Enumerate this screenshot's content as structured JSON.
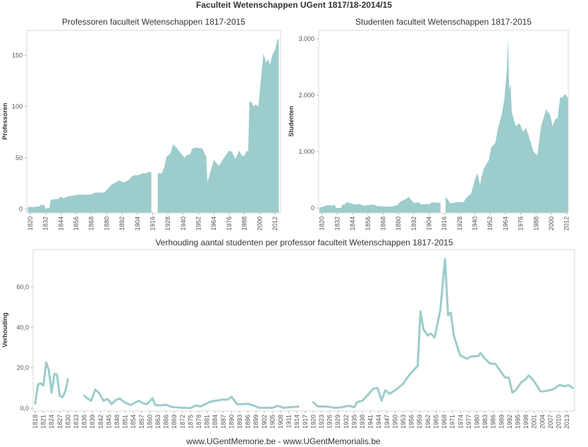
{
  "title": "Faculteit Wetenschappen UGent 1817/18-2014/15",
  "footer": "www.UGentMemorie.be - www.UGentMemorialis.be",
  "colors": {
    "series": "#9ccccc",
    "frame": "#d9d9d9"
  },
  "chart_data": [
    {
      "type": "area",
      "title": "Professoren faculteit Wetenschappen 1817-2015",
      "ylabel": "Professoren",
      "ylim": [
        0,
        170
      ],
      "yticks": [
        {
          "v": 0,
          "label": "0"
        },
        {
          "v": 50,
          "label": "50"
        },
        {
          "v": 100,
          "label": "100"
        },
        {
          "v": 150,
          "label": "150"
        }
      ],
      "xticks": [
        "1820",
        "1832",
        "1844",
        "1856",
        "1868",
        "1880",
        "1892",
        "1904",
        "1916",
        "1928",
        "1940",
        "1952",
        "1964",
        "1976",
        "1988",
        "2000",
        "2012"
      ],
      "points": [
        [
          1818,
          2
        ],
        [
          1822,
          2
        ],
        [
          1827,
          2.5
        ],
        [
          1828,
          4
        ],
        [
          1831,
          4
        ],
        [
          1832,
          0
        ],
        [
          1833,
          1
        ],
        [
          1835,
          1
        ],
        [
          1836,
          9
        ],
        [
          1842,
          10
        ],
        [
          1844,
          12
        ],
        [
          1846,
          10.5
        ],
        [
          1849,
          12
        ],
        [
          1857,
          14
        ],
        [
          1863,
          14
        ],
        [
          1867,
          14
        ],
        [
          1871,
          16
        ],
        [
          1878,
          16
        ],
        [
          1881,
          20
        ],
        [
          1884,
          24
        ],
        [
          1890,
          28
        ],
        [
          1893,
          26
        ],
        [
          1897,
          28
        ],
        [
          1900,
          32
        ],
        [
          1902,
          33
        ],
        [
          1905,
          33
        ],
        [
          1908,
          35
        ],
        [
          1911,
          34.5
        ],
        [
          1912,
          36
        ],
        [
          1915,
          36
        ],
        [
          1916,
          null
        ],
        [
          1920,
          35
        ],
        [
          1923,
          34.5
        ],
        [
          1925,
          40
        ],
        [
          1927,
          51
        ],
        [
          1930,
          54
        ],
        [
          1932,
          63
        ],
        [
          1934,
          61
        ],
        [
          1941,
          50
        ],
        [
          1943,
          53
        ],
        [
          1945,
          53
        ],
        [
          1946,
          55
        ],
        [
          1947,
          59
        ],
        [
          1950,
          60
        ],
        [
          1955,
          59
        ],
        [
          1958,
          51
        ],
        [
          1959,
          26
        ],
        [
          1961,
          35
        ],
        [
          1964,
          48
        ],
        [
          1968,
          42
        ],
        [
          1972,
          50
        ],
        [
          1976,
          57
        ],
        [
          1978,
          56
        ],
        [
          1981,
          49
        ],
        [
          1984,
          57
        ],
        [
          1986,
          52
        ],
        [
          1988,
          52
        ],
        [
          1990,
          57
        ],
        [
          1991,
          56
        ],
        [
          1992,
          105
        ],
        [
          1994,
          104
        ],
        [
          1995,
          100
        ],
        [
          1997,
          102
        ],
        [
          1999,
          100
        ],
        [
          2003,
          152
        ],
        [
          2005,
          143
        ],
        [
          2007,
          146
        ],
        [
          2008,
          140
        ],
        [
          2010,
          150
        ],
        [
          2012,
          155
        ],
        [
          2014,
          165
        ],
        [
          2015,
          166
        ]
      ]
    },
    {
      "type": "area",
      "title": "Studenten faculteit Wetenschappen 1817-2015",
      "ylabel": "Studenten",
      "ylim": [
        0,
        3150
      ],
      "yticks": [
        {
          "v": 0,
          "label": "0"
        },
        {
          "v": 1000,
          "label": "1.000"
        },
        {
          "v": 2000,
          "label": "2.000"
        },
        {
          "v": 3000,
          "label": "3.000"
        }
      ],
      "xticks": [
        "1820",
        "1832",
        "1844",
        "1856",
        "1868",
        "1880",
        "1892",
        "1904",
        "1916",
        "1928",
        "1940",
        "1952",
        "1964",
        "1976",
        "1988",
        "2000",
        "2012"
      ],
      "points": [
        [
          1818,
          10
        ],
        [
          1822,
          30
        ],
        [
          1824,
          50
        ],
        [
          1826,
          50
        ],
        [
          1828,
          40
        ],
        [
          1830,
          60
        ],
        [
          1831,
          0
        ],
        [
          1835,
          0
        ],
        [
          1836,
          60
        ],
        [
          1838,
          60
        ],
        [
          1839,
          100
        ],
        [
          1842,
          90
        ],
        [
          1845,
          60
        ],
        [
          1849,
          70
        ],
        [
          1853,
          40
        ],
        [
          1859,
          60
        ],
        [
          1861,
          60
        ],
        [
          1863,
          35
        ],
        [
          1872,
          25
        ],
        [
          1875,
          25
        ],
        [
          1879,
          50
        ],
        [
          1882,
          120
        ],
        [
          1886,
          160
        ],
        [
          1888,
          200
        ],
        [
          1892,
          90
        ],
        [
          1896,
          100
        ],
        [
          1898,
          60
        ],
        [
          1901,
          70
        ],
        [
          1905,
          70
        ],
        [
          1906,
          100
        ],
        [
          1912,
          90
        ],
        [
          1913,
          90
        ],
        [
          1914,
          null
        ],
        [
          1917,
          200
        ],
        [
          1921,
          80
        ],
        [
          1927,
          110
        ],
        [
          1931,
          100
        ],
        [
          1934,
          200
        ],
        [
          1937,
          250
        ],
        [
          1940,
          500
        ],
        [
          1942,
          620
        ],
        [
          1944,
          400
        ],
        [
          1945,
          530
        ],
        [
          1947,
          700
        ],
        [
          1951,
          850
        ],
        [
          1953,
          1080
        ],
        [
          1956,
          1150
        ],
        [
          1958,
          1400
        ],
        [
          1961,
          1650
        ],
        [
          1963,
          1900
        ],
        [
          1965,
          2400
        ],
        [
          1966,
          3000
        ],
        [
          1967,
          2100
        ],
        [
          1968,
          2200
        ],
        [
          1969,
          1700
        ],
        [
          1972,
          1450
        ],
        [
          1975,
          1500
        ],
        [
          1978,
          1350
        ],
        [
          1980,
          1420
        ],
        [
          1982,
          1300
        ],
        [
          1986,
          1000
        ],
        [
          1989,
          930
        ],
        [
          1992,
          1450
        ],
        [
          1996,
          1750
        ],
        [
          1999,
          1650
        ],
        [
          2001,
          1450
        ],
        [
          2003,
          1570
        ],
        [
          2005,
          1600
        ],
        [
          2007,
          1980
        ],
        [
          2008,
          1950
        ],
        [
          2011,
          2020
        ],
        [
          2013,
          1950
        ]
      ]
    },
    {
      "type": "line",
      "title": "Verhouding aantal studenten per professor faculteit Wetenschappen 1817-2015",
      "ylabel": "Verhouding",
      "ylim": [
        0,
        78
      ],
      "yticks": [
        {
          "v": 0,
          "label": "0,0"
        },
        {
          "v": 20,
          "label": "20,0"
        },
        {
          "v": 40,
          "label": "40,0"
        },
        {
          "v": 60,
          "label": "60,0"
        }
      ],
      "xticks": [
        "1818",
        "1821",
        "1824",
        "1827",
        "1830",
        "1833",
        "1836",
        "1839",
        "1842",
        "1845",
        "1848",
        "1851",
        "1854",
        "1857",
        "1860",
        "1863",
        "1866",
        "1869",
        "1872",
        "1875",
        "1878",
        "1881",
        "1884",
        "1887",
        "1890",
        "1893",
        "1896",
        "1899",
        "1902",
        "1905",
        "1908",
        "1911",
        "1914",
        "1917",
        "1920",
        "1923",
        "1926",
        "1929",
        "1932",
        "1935",
        "1938",
        "1941",
        "1944",
        "1947",
        "1950",
        "1953",
        "1956",
        "1959",
        "1962",
        "1965",
        "1968",
        "1971",
        "1974",
        "1977",
        "1980",
        "1983",
        "1986",
        "1989",
        "1992",
        "1995",
        "1998",
        "2001",
        "2004",
        "2007",
        "2010",
        "2013"
      ],
      "points": [
        [
          1818,
          2.3
        ],
        [
          1819,
          11.8
        ],
        [
          1820,
          12.3
        ],
        [
          1821,
          11.2
        ],
        [
          1822,
          22.7
        ],
        [
          1823,
          18.7
        ],
        [
          1824,
          7.7
        ],
        [
          1825,
          17
        ],
        [
          1826,
          16.6
        ],
        [
          1827,
          6
        ],
        [
          1828,
          5.4
        ],
        [
          1829,
          8.3
        ],
        [
          1830,
          14.3
        ],
        [
          1831,
          null
        ],
        [
          1836,
          6.2
        ],
        [
          1837,
          5
        ],
        [
          1838.5,
          3.7
        ],
        [
          1840,
          9.2
        ],
        [
          1841.5,
          7.4
        ],
        [
          1843,
          3.7
        ],
        [
          1844.5,
          4.6
        ],
        [
          1846,
          2
        ],
        [
          1847.5,
          4
        ],
        [
          1849,
          4.8
        ],
        [
          1850.5,
          3.1
        ],
        [
          1853,
          1.6
        ],
        [
          1856,
          3.7
        ],
        [
          1857.5,
          2.5
        ],
        [
          1859,
          2
        ],
        [
          1861,
          5
        ],
        [
          1862,
          1.6
        ],
        [
          1864,
          1.4
        ],
        [
          1866,
          1.7
        ],
        [
          1868,
          0.6
        ],
        [
          1872,
          0.2
        ],
        [
          1875,
          0.1
        ],
        [
          1877,
          1.4
        ],
        [
          1878.5,
          0.8
        ],
        [
          1882,
          3.1
        ],
        [
          1884,
          3.7
        ],
        [
          1887,
          4.3
        ],
        [
          1888.5,
          4.2
        ],
        [
          1890,
          5.7
        ],
        [
          1892,
          2
        ],
        [
          1894,
          2
        ],
        [
          1896,
          2.2
        ],
        [
          1898,
          1.4
        ],
        [
          1900,
          0.2
        ],
        [
          1902.5,
          0.2
        ],
        [
          1905,
          0.2
        ],
        [
          1907,
          1.2
        ],
        [
          1909,
          0.2
        ],
        [
          1911,
          0.5
        ],
        [
          1914.5,
          0.8
        ],
        [
          1915,
          null
        ],
        [
          1920,
          2.9
        ],
        [
          1921.6,
          0.9
        ],
        [
          1925,
          0.8
        ],
        [
          1928,
          0.2
        ],
        [
          1930.4,
          0.5
        ],
        [
          1933,
          1.2
        ],
        [
          1935,
          0.5
        ],
        [
          1936,
          3
        ],
        [
          1938,
          3.7
        ],
        [
          1940,
          6.6
        ],
        [
          1942,
          9.7
        ],
        [
          1943.6,
          10
        ],
        [
          1945,
          3.7
        ],
        [
          1946.4,
          8.9
        ],
        [
          1948,
          7.2
        ],
        [
          1950,
          8.9
        ],
        [
          1952.7,
          11.8
        ],
        [
          1955.5,
          17
        ],
        [
          1958.3,
          21
        ],
        [
          1959.3,
          47.8
        ],
        [
          1960.4,
          38.9
        ],
        [
          1962,
          36
        ],
        [
          1963,
          37
        ],
        [
          1964.5,
          35
        ],
        [
          1966.6,
          48.7
        ],
        [
          1968.3,
          73.8
        ],
        [
          1969.4,
          46
        ],
        [
          1970.4,
          47.3
        ],
        [
          1971.5,
          36
        ],
        [
          1973.8,
          26.2
        ],
        [
          1976.4,
          24.5
        ],
        [
          1977.7,
          25.6
        ],
        [
          1980.5,
          25.8
        ],
        [
          1981.3,
          27.3
        ],
        [
          1982.6,
          25
        ],
        [
          1984.7,
          22.2
        ],
        [
          1986.8,
          21.9
        ],
        [
          1990.3,
          15.2
        ],
        [
          1991.7,
          15.2
        ],
        [
          1993,
          7.7
        ],
        [
          1994.2,
          8.9
        ],
        [
          1996.3,
          12.9
        ],
        [
          1997.7,
          14.1
        ],
        [
          1999,
          16.2
        ],
        [
          2000.5,
          14.1
        ],
        [
          2002,
          11.2
        ],
        [
          2003.3,
          8.3
        ],
        [
          2005.4,
          8.5
        ],
        [
          2008.2,
          9.5
        ],
        [
          2010.3,
          11.5
        ],
        [
          2012.4,
          10.8
        ],
        [
          2013.6,
          11.5
        ],
        [
          2015.2,
          9.9
        ]
      ]
    }
  ]
}
